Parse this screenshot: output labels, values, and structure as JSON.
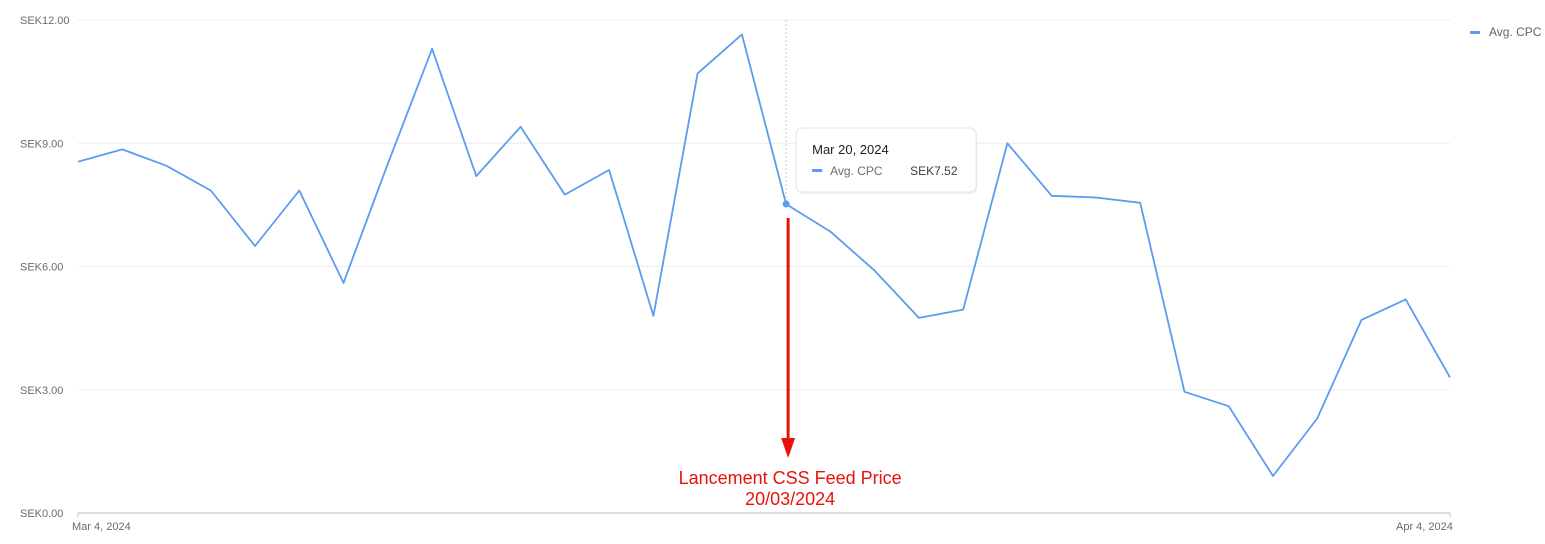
{
  "chart_data": {
    "type": "line",
    "title": "",
    "xlabel": "",
    "ylabel": "",
    "x": [
      "2024-03-04",
      "2024-03-05",
      "2024-03-06",
      "2024-03-07",
      "2024-03-08",
      "2024-03-09",
      "2024-03-10",
      "2024-03-11",
      "2024-03-12",
      "2024-03-13",
      "2024-03-14",
      "2024-03-15",
      "2024-03-16",
      "2024-03-17",
      "2024-03-18",
      "2024-03-19",
      "2024-03-20",
      "2024-03-21",
      "2024-03-22",
      "2024-03-23",
      "2024-03-24",
      "2024-03-25",
      "2024-03-26",
      "2024-03-27",
      "2024-03-28",
      "2024-03-29",
      "2024-03-30",
      "2024-03-31",
      "2024-04-01",
      "2024-04-02",
      "2024-04-03",
      "2024-04-04"
    ],
    "x_tick_labels": [
      "Mar 4, 2024",
      "Apr 4, 2024"
    ],
    "ylim": [
      0,
      12
    ],
    "y_ticks": [
      0,
      3,
      6,
      9,
      12
    ],
    "y_tick_labels": [
      "SEK0.00",
      "SEK3.00",
      "SEK6.00",
      "SEK9.00",
      "SEK12.00"
    ],
    "grid": true,
    "legend_position": "top-right",
    "series": [
      {
        "name": "Avg. CPC",
        "color": "#5b9bf0",
        "values": [
          8.55,
          8.85,
          8.45,
          7.85,
          6.5,
          7.85,
          5.6,
          8.5,
          11.3,
          8.2,
          9.4,
          7.75,
          8.35,
          4.8,
          10.7,
          11.65,
          7.52,
          6.85,
          5.9,
          4.75,
          4.95,
          9.0,
          7.72,
          7.68,
          7.55,
          2.95,
          2.6,
          0.9,
          2.3,
          4.7,
          5.2,
          3.3
        ]
      }
    ],
    "tooltip": {
      "date": "Mar 20, 2024",
      "series_label": "Avg. CPC",
      "value_label": "SEK7.52",
      "x": "2024-03-20",
      "y": 7.52
    },
    "annotation": {
      "line1": "Lancement CSS Feed Price",
      "line2": "20/03/2024",
      "x": "2024-03-20",
      "color": "#e8120c"
    }
  }
}
